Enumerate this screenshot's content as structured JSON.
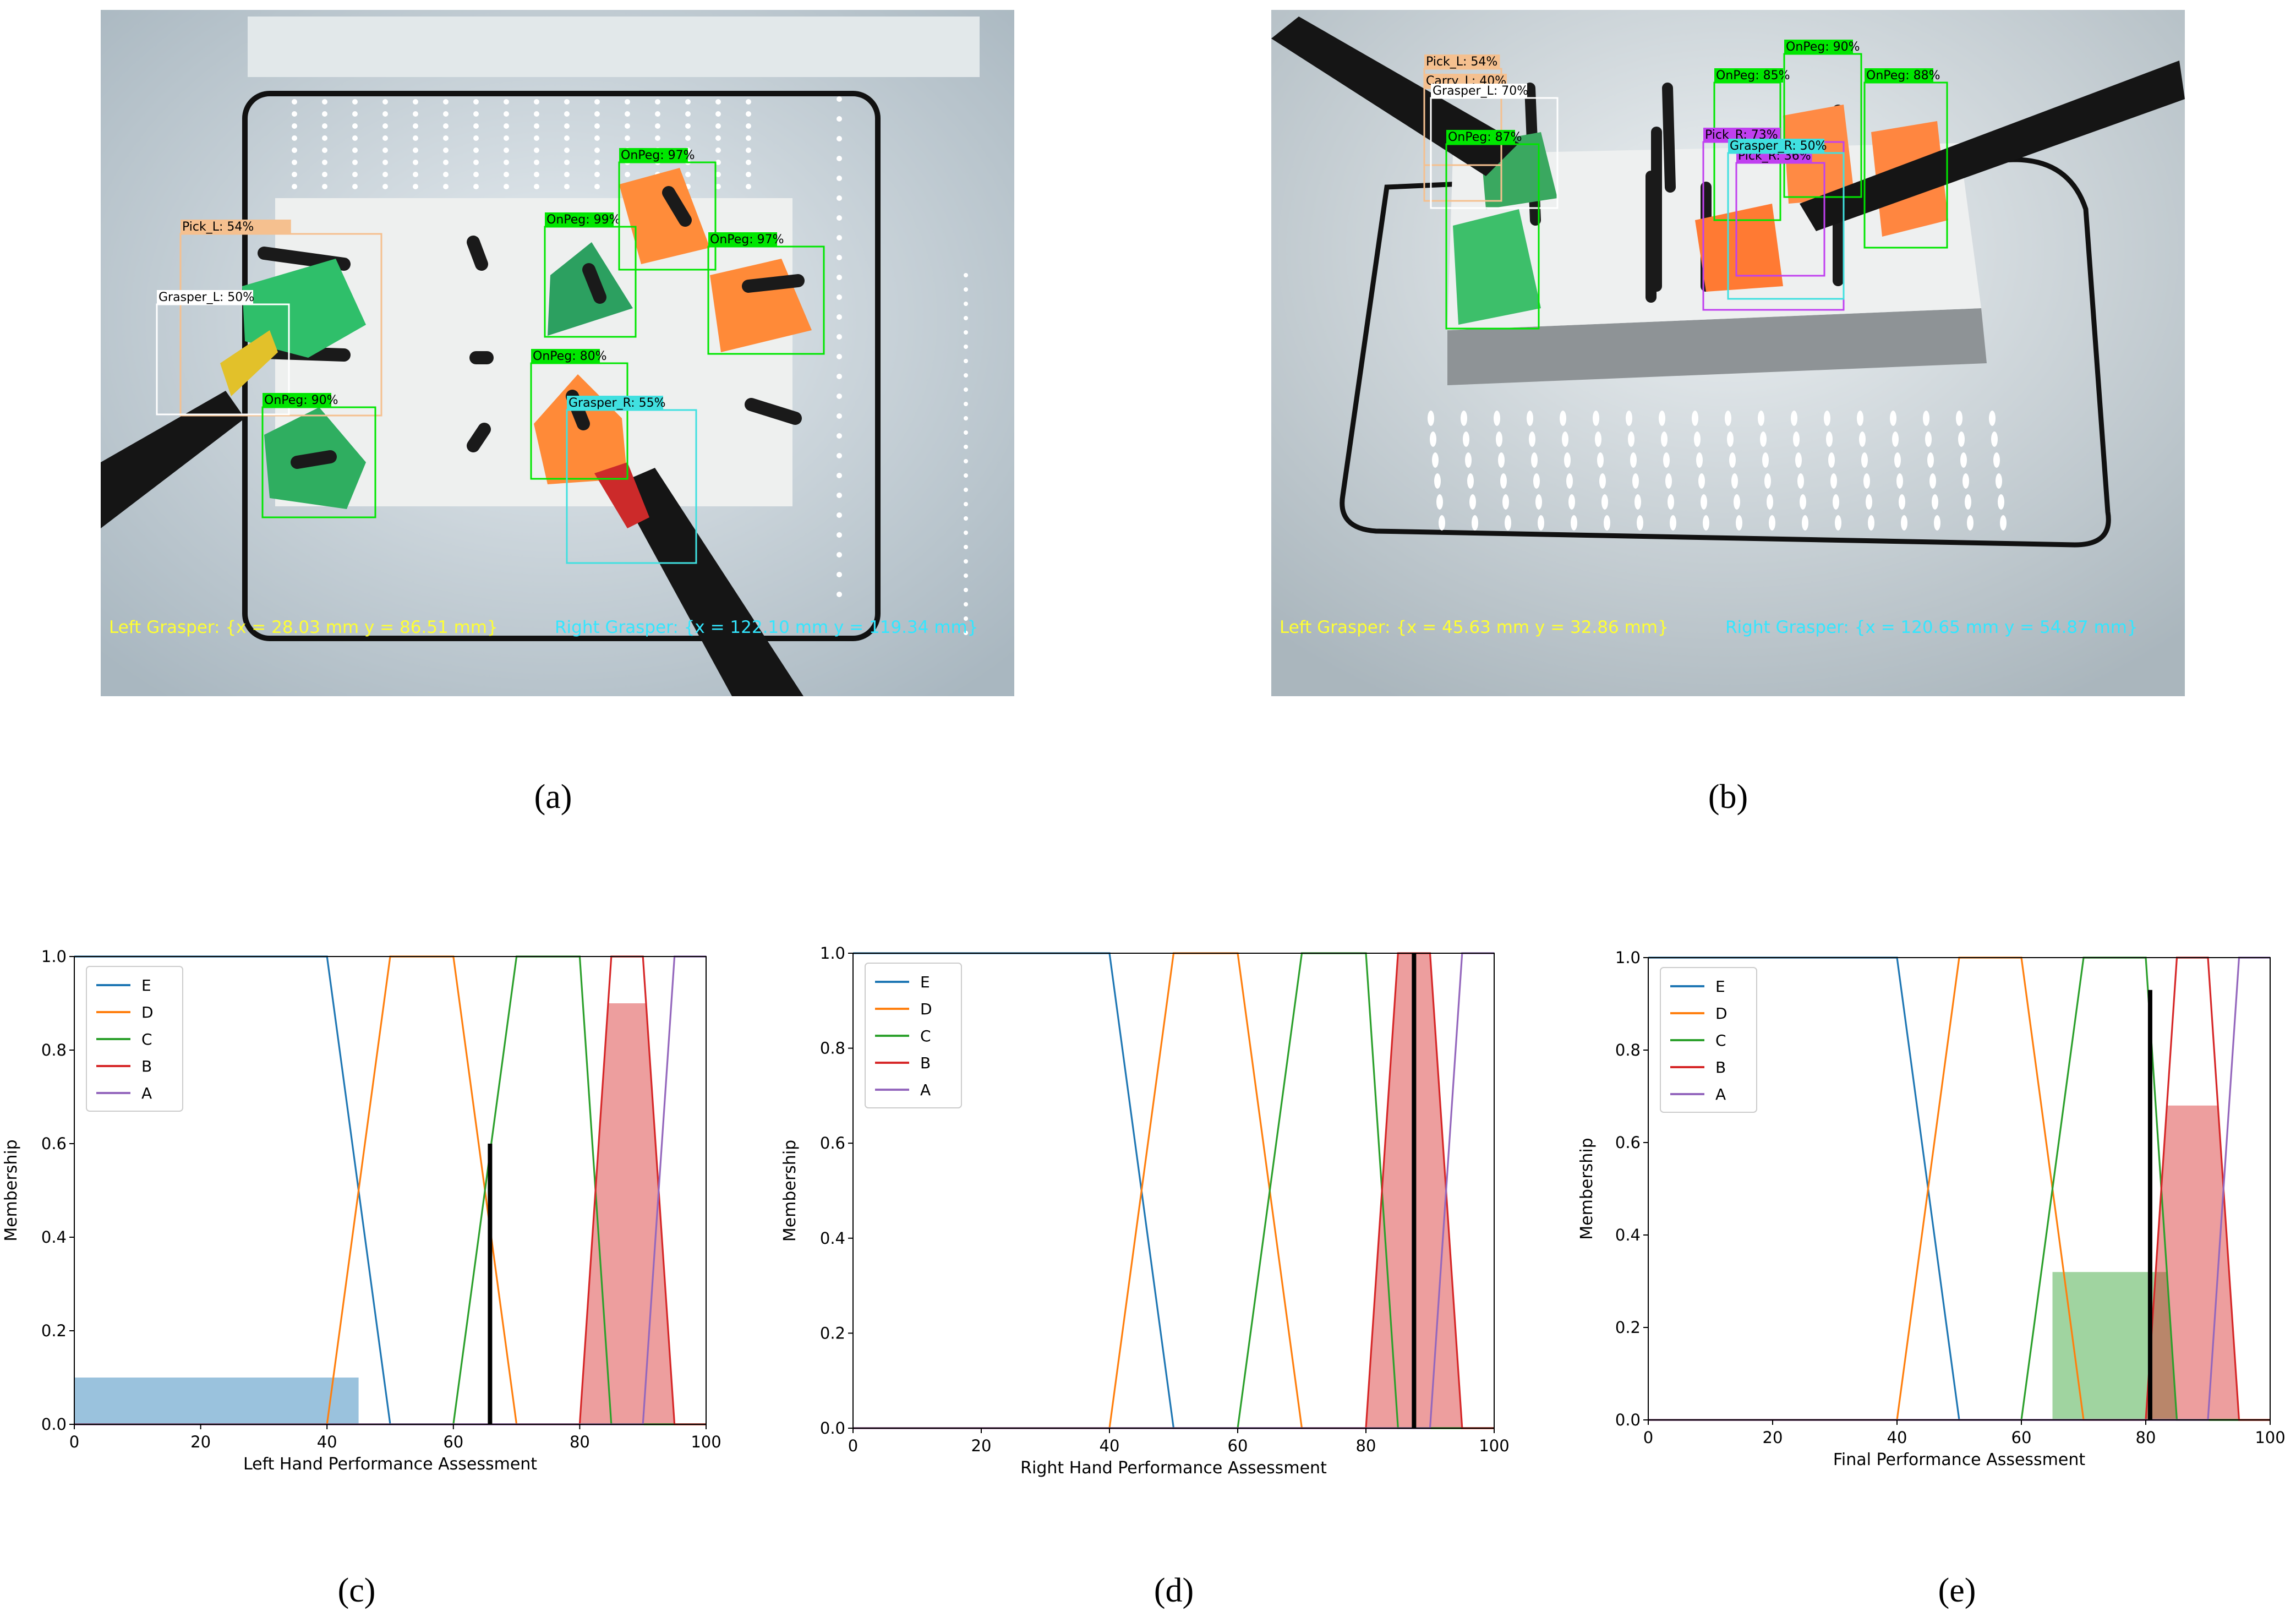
{
  "captions": [
    "(a)",
    "(b)",
    "(c)",
    "(d)",
    "(e)"
  ],
  "photos": [
    {
      "detections": [
        {
          "label": "Pick_L: 54%",
          "color": "#f5c08f"
        },
        {
          "label": "Grasper_L: 50%",
          "color": "#ffffff"
        },
        {
          "label": "OnPeg: 90%",
          "color": "#00e600"
        },
        {
          "label": "OnPeg: 99%",
          "color": "#00e600"
        },
        {
          "label": "OnPeg: 97%",
          "color": "#00e600"
        },
        {
          "label": "OnPeg: 97%",
          "color": "#00e600"
        },
        {
          "label": "OnPeg: 80%",
          "color": "#00e600"
        },
        {
          "label": "Grasper_R: 55%",
          "color": "#40e0e0"
        }
      ],
      "left_readout": "Left Grasper: {x = 28.03 mm     y =  86.51 mm}",
      "right_readout": "Right Grasper: {x = 122.10 mm   y = 119.34 mm}"
    },
    {
      "detections": [
        {
          "label": "Pick_L: 54%",
          "color": "#f5c08f"
        },
        {
          "label": "Carry_L: 40%",
          "color": "#f5c08f"
        },
        {
          "label": "Grasper_L: 70%",
          "color": "#ffffff"
        },
        {
          "label": "OnPeg: 87%",
          "color": "#00e600"
        },
        {
          "label": "OnPeg: 85%",
          "color": "#00e600"
        },
        {
          "label": "OnPeg: 90%",
          "color": "#00e600"
        },
        {
          "label": "OnPeg: 88%",
          "color": "#00e600"
        },
        {
          "label": "Pick_R: 73%",
          "color": "#c040f0"
        },
        {
          "label": "Pick_R: 36%",
          "color": "#c040f0"
        },
        {
          "label": "Grasper_R: 50%",
          "color": "#40e0e0"
        }
      ],
      "left_readout": "Left Grasper: {x = 45.63 mm     y =  32.86 mm}",
      "right_readout": "Right Grasper: {x = 120.65 mm    y = 54.87 mm}"
    }
  ],
  "chart_data": [
    {
      "type": "area",
      "xlabel": "Left Hand Performance Assessment",
      "ylabel": "Membership",
      "xlim": [
        0,
        100
      ],
      "ylim": [
        0,
        1
      ],
      "xticks": [
        0,
        20,
        40,
        60,
        80,
        100
      ],
      "yticks": [
        0.0,
        0.2,
        0.4,
        0.6,
        0.8,
        1.0
      ],
      "legend_position": "top-left",
      "series": [
        {
          "name": "E",
          "color": "#1f77b4",
          "points": [
            [
              0,
              1
            ],
            [
              40,
              1
            ],
            [
              50,
              0
            ],
            [
              100,
              0
            ]
          ]
        },
        {
          "name": "D",
          "color": "#ff7f0e",
          "points": [
            [
              0,
              0
            ],
            [
              40,
              0
            ],
            [
              50,
              1
            ],
            [
              60,
              1
            ],
            [
              70,
              0
            ],
            [
              100,
              0
            ]
          ]
        },
        {
          "name": "C",
          "color": "#2ca02c",
          "points": [
            [
              0,
              0
            ],
            [
              60,
              0
            ],
            [
              70,
              1
            ],
            [
              80,
              1
            ],
            [
              85,
              0
            ],
            [
              100,
              0
            ]
          ]
        },
        {
          "name": "B",
          "color": "#d62728",
          "points": [
            [
              0,
              0
            ],
            [
              80,
              0
            ],
            [
              85,
              1
            ],
            [
              90,
              1
            ],
            [
              95,
              0
            ],
            [
              100,
              0
            ]
          ]
        },
        {
          "name": "A",
          "color": "#9467bd",
          "points": [
            [
              0,
              0
            ],
            [
              90,
              0
            ],
            [
              95,
              1
            ],
            [
              100,
              1
            ]
          ]
        }
      ],
      "activations": [
        {
          "set": "E",
          "level": 0.1,
          "color": "#1f77b4"
        },
        {
          "set": "B",
          "level": 0.9,
          "color": "#d62728"
        }
      ],
      "result": {
        "x": 65.8,
        "y": 0.6
      }
    },
    {
      "type": "area",
      "xlabel": "Right Hand Performance Assessment",
      "ylabel": "Membership",
      "xlim": [
        0,
        100
      ],
      "ylim": [
        0,
        1
      ],
      "xticks": [
        0,
        20,
        40,
        60,
        80,
        100
      ],
      "yticks": [
        0.0,
        0.2,
        0.4,
        0.6,
        0.8,
        1.0
      ],
      "legend_position": "top-left",
      "series": [
        {
          "name": "E",
          "color": "#1f77b4",
          "points": [
            [
              0,
              1
            ],
            [
              40,
              1
            ],
            [
              50,
              0
            ],
            [
              100,
              0
            ]
          ]
        },
        {
          "name": "D",
          "color": "#ff7f0e",
          "points": [
            [
              0,
              0
            ],
            [
              40,
              0
            ],
            [
              50,
              1
            ],
            [
              60,
              1
            ],
            [
              70,
              0
            ],
            [
              100,
              0
            ]
          ]
        },
        {
          "name": "C",
          "color": "#2ca02c",
          "points": [
            [
              0,
              0
            ],
            [
              60,
              0
            ],
            [
              70,
              1
            ],
            [
              80,
              1
            ],
            [
              85,
              0
            ],
            [
              100,
              0
            ]
          ]
        },
        {
          "name": "B",
          "color": "#d62728",
          "points": [
            [
              0,
              0
            ],
            [
              80,
              0
            ],
            [
              85,
              1
            ],
            [
              90,
              1
            ],
            [
              95,
              0
            ],
            [
              100,
              0
            ]
          ]
        },
        {
          "name": "A",
          "color": "#9467bd",
          "points": [
            [
              0,
              0
            ],
            [
              90,
              0
            ],
            [
              95,
              1
            ],
            [
              100,
              1
            ]
          ]
        }
      ],
      "activations": [
        {
          "set": "B",
          "level": 1.0,
          "color": "#d62728"
        }
      ],
      "result": {
        "x": 87.5,
        "y": 1.0
      }
    },
    {
      "type": "area",
      "xlabel": "Final Performance Assessment",
      "ylabel": "Membership",
      "xlim": [
        0,
        100
      ],
      "ylim": [
        0,
        1
      ],
      "xticks": [
        0,
        20,
        40,
        60,
        80,
        100
      ],
      "yticks": [
        0.0,
        0.2,
        0.4,
        0.6,
        0.8,
        1.0
      ],
      "legend_position": "top-left",
      "series": [
        {
          "name": "E",
          "color": "#1f77b4",
          "points": [
            [
              0,
              1
            ],
            [
              40,
              1
            ],
            [
              50,
              0
            ],
            [
              100,
              0
            ]
          ]
        },
        {
          "name": "D",
          "color": "#ff7f0e",
          "points": [
            [
              0,
              0
            ],
            [
              40,
              0
            ],
            [
              50,
              1
            ],
            [
              60,
              1
            ],
            [
              70,
              0
            ],
            [
              100,
              0
            ]
          ]
        },
        {
          "name": "C",
          "color": "#2ca02c",
          "points": [
            [
              0,
              0
            ],
            [
              60,
              0
            ],
            [
              70,
              1
            ],
            [
              80,
              1
            ],
            [
              85,
              0
            ],
            [
              100,
              0
            ]
          ]
        },
        {
          "name": "B",
          "color": "#d62728",
          "points": [
            [
              0,
              0
            ],
            [
              80,
              0
            ],
            [
              85,
              1
            ],
            [
              90,
              1
            ],
            [
              95,
              0
            ],
            [
              100,
              0
            ]
          ]
        },
        {
          "name": "A",
          "color": "#9467bd",
          "points": [
            [
              0,
              0
            ],
            [
              90,
              0
            ],
            [
              95,
              1
            ],
            [
              100,
              1
            ]
          ]
        }
      ],
      "activations": [
        {
          "set": "C",
          "level": 0.32,
          "color": "#2ca02c"
        },
        {
          "set": "B",
          "level": 0.68,
          "color": "#d62728"
        }
      ],
      "result": {
        "x": 80.7,
        "y": 0.93
      }
    }
  ]
}
